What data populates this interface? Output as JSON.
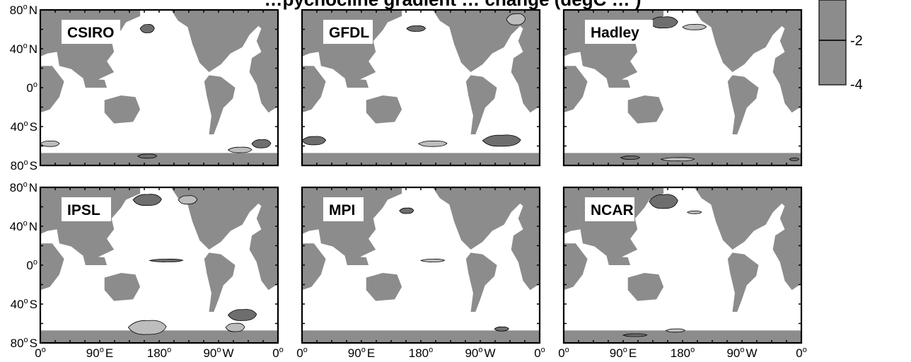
{
  "title": "…pycnocline gradient … change (degC … )",
  "panels": [
    {
      "name": "CSIRO"
    },
    {
      "name": "GFDL"
    },
    {
      "name": "Hadley"
    },
    {
      "name": "IPSL"
    },
    {
      "name": "MPI"
    },
    {
      "name": "NCAR"
    }
  ],
  "y_axis": {
    "ticks": [
      {
        "deg": "80",
        "hemi": "N"
      },
      {
        "deg": "40",
        "hemi": "N"
      },
      {
        "deg": "0",
        "hemi": ""
      },
      {
        "deg": "40",
        "hemi": "S"
      },
      {
        "deg": "80",
        "hemi": "S"
      }
    ]
  },
  "x_axis": {
    "ticks": [
      {
        "deg": "0",
        "hemi": ""
      },
      {
        "deg": "90",
        "hemi": "E"
      },
      {
        "deg": "180",
        "hemi": ""
      },
      {
        "deg": "90",
        "hemi": "W"
      },
      {
        "deg": "0",
        "hemi": ""
      }
    ]
  },
  "colorbar": {
    "labels": [
      "-2",
      "-4"
    ]
  },
  "colors": {
    "land": "#8c8c8c",
    "ocean": "#ffffff",
    "shade_dark": "#6e6e6e",
    "shade_light": "#bdbdbd",
    "contour": "#000000"
  }
}
